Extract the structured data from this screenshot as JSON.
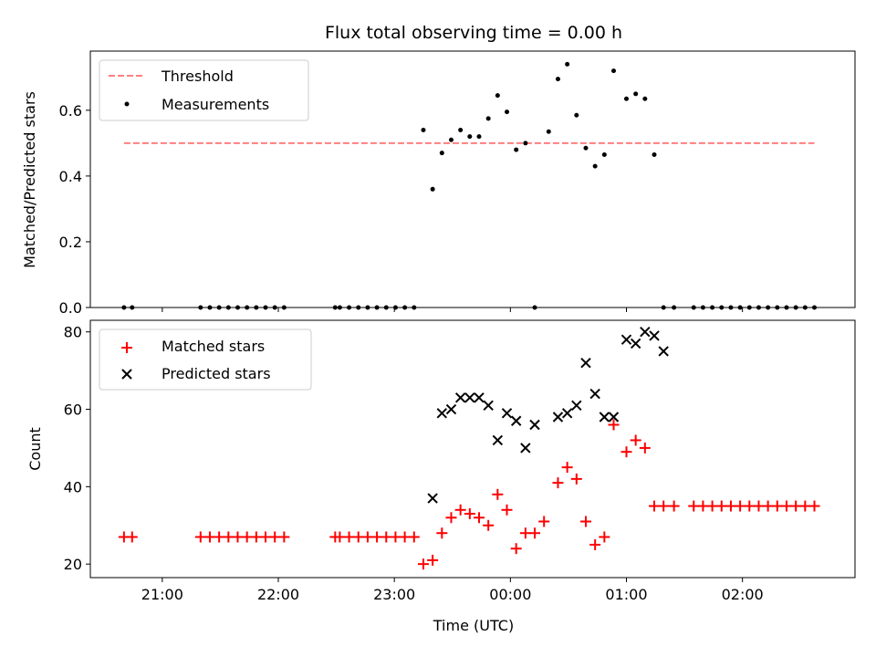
{
  "title": "Flux total observing time = 0.00 h",
  "top_panel": {
    "ylabel": "Matched/Predicted stars",
    "ylim": [
      0,
      0.78
    ],
    "yticks": [
      "0.0",
      "0.2",
      "0.4",
      "0.6"
    ],
    "legend": {
      "threshold": "Threshold",
      "measurements": "Measurements"
    }
  },
  "bottom_panel": {
    "ylabel": "Count",
    "ylim": [
      16.5,
      83
    ],
    "yticks": [
      "20",
      "40",
      "60",
      "80"
    ],
    "legend": {
      "matched": "Matched stars",
      "predicted": "Predicted stars"
    }
  },
  "xlabel": "Time (UTC)",
  "xticks": [
    "21:00",
    "22:00",
    "23:00",
    "00:00",
    "01:00",
    "02:00"
  ],
  "chart_data": {
    "type": "scatter",
    "x_unit": "hours since 20:00 UTC",
    "xlim": [
      20.38,
      26.97
    ],
    "ratio": {
      "threshold": {
        "value": 0.5,
        "x_range": [
          20.67,
          26.62
        ],
        "color": "#ff7f7f"
      },
      "x": [
        20.67,
        20.74,
        21.33,
        21.41,
        21.49,
        21.57,
        21.65,
        21.73,
        21.81,
        21.89,
        21.97,
        22.05,
        22.49,
        22.53,
        22.61,
        22.69,
        22.77,
        22.85,
        22.93,
        23.01,
        23.09,
        23.17,
        23.25,
        23.33,
        23.41,
        23.49,
        23.57,
        23.65,
        23.73,
        23.81,
        23.89,
        23.97,
        24.05,
        24.13,
        24.21,
        24.33,
        24.41,
        24.49,
        24.57,
        24.65,
        24.73,
        24.81,
        24.89,
        25.0,
        25.08,
        25.16,
        25.24,
        25.32,
        25.41,
        25.58,
        25.66,
        25.74,
        25.82,
        25.9,
        25.98,
        26.06,
        26.14,
        26.22,
        26.3,
        26.38,
        26.46,
        26.54,
        26.62
      ],
      "y": [
        0,
        0,
        0,
        0,
        0,
        0,
        0,
        0,
        0,
        0,
        0,
        0,
        0,
        0,
        0,
        0,
        0,
        0,
        0,
        0,
        0,
        0,
        0.54,
        0.36,
        0.47,
        0.51,
        0.54,
        0.52,
        0.52,
        0.575,
        0.645,
        0.595,
        0.48,
        0.5,
        0,
        0.535,
        0.695,
        0.74,
        0.585,
        0.485,
        0.43,
        0.465,
        0.72,
        0.635,
        0.65,
        0.635,
        0.465,
        0,
        0,
        0,
        0,
        0,
        0,
        0,
        0,
        0,
        0,
        0,
        0,
        0,
        0,
        0,
        0
      ]
    },
    "matched": {
      "color": "#ff0000",
      "x": [
        20.67,
        20.74,
        21.33,
        21.41,
        21.49,
        21.57,
        21.65,
        21.73,
        21.81,
        21.89,
        21.97,
        22.05,
        22.49,
        22.53,
        22.61,
        22.69,
        22.77,
        22.85,
        22.93,
        23.01,
        23.09,
        23.17,
        23.25,
        23.33,
        23.41,
        23.49,
        23.57,
        23.65,
        23.73,
        23.81,
        23.89,
        23.97,
        24.05,
        24.13,
        24.21,
        24.29,
        24.41,
        24.49,
        24.57,
        24.65,
        24.73,
        24.81,
        24.89,
        25.0,
        25.08,
        25.16,
        25.24,
        25.32,
        25.41,
        25.58,
        25.66,
        25.74,
        25.82,
        25.9,
        25.98,
        26.06,
        26.14,
        26.22,
        26.3,
        26.38,
        26.46,
        26.54,
        26.62
      ],
      "y": [
        27,
        27,
        27,
        27,
        27,
        27,
        27,
        27,
        27,
        27,
        27,
        27,
        27,
        27,
        27,
        27,
        27,
        27,
        27,
        27,
        27,
        27,
        20,
        21,
        28,
        32,
        34,
        33,
        32,
        30,
        38,
        34,
        24,
        28,
        28,
        31,
        41,
        45,
        42,
        31,
        25,
        27,
        56,
        49,
        52,
        50,
        35,
        35,
        35,
        35,
        35,
        35,
        35,
        35,
        35,
        35,
        35,
        35,
        35,
        35,
        35,
        35,
        35
      ]
    },
    "predicted": {
      "color": "#000000",
      "x": [
        23.33,
        23.41,
        23.49,
        23.57,
        23.65,
        23.73,
        23.81,
        23.89,
        23.97,
        24.05,
        24.13,
        24.21,
        24.41,
        24.49,
        24.57,
        24.65,
        24.73,
        24.81,
        24.89,
        25.0,
        25.08,
        25.16,
        25.24,
        25.32
      ],
      "y": [
        37,
        59,
        60,
        63,
        63,
        63,
        61,
        52,
        59,
        57,
        50,
        56,
        58,
        59,
        61,
        72,
        64,
        58,
        58,
        78,
        77,
        80,
        79,
        75
      ]
    }
  }
}
